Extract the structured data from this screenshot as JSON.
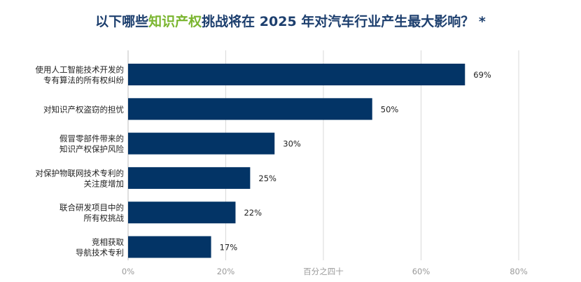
{
  "title": {
    "before": "以下哪些",
    "highlight": "知识产权",
    "after": "挑战将在 2025 年对汽车行业产生最大影响？ *"
  },
  "colors": {
    "bar": "#033466",
    "highlight": "#7ab52f",
    "title": "#1d3f6e",
    "grid": "#d9d9d9"
  },
  "chart_data": {
    "type": "bar",
    "orientation": "horizontal",
    "categories": [
      [
        "使用人工智能技术开发的",
        "专有算法的所有权纠纷"
      ],
      [
        "对知识产权盗窃的担忧"
      ],
      [
        "假冒零部件带来的",
        "知识产权保护风险"
      ],
      [
        "对保护物联网技术专利的",
        "关注度增加"
      ],
      [
        "联合研发项目中的",
        "所有权挑战"
      ],
      [
        "竞相获取",
        "导航技术专利"
      ]
    ],
    "values": [
      69,
      50,
      30,
      25,
      22,
      17
    ],
    "value_labels": [
      "69%",
      "50%",
      "30%",
      "25%",
      "22%",
      "17%"
    ],
    "xlim": [
      0,
      80
    ],
    "x_ticks": [
      0,
      20,
      40,
      60,
      80
    ],
    "x_tick_labels": [
      "0%",
      "20%",
      "百分之四十",
      "60%",
      "80%"
    ],
    "grid": true
  }
}
